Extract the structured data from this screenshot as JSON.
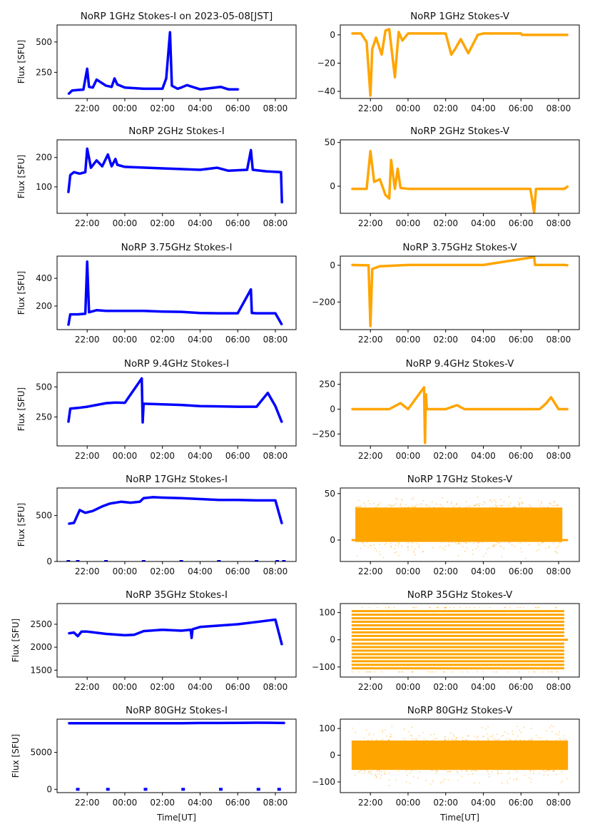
{
  "figure": {
    "xlabel": "Time[UT]",
    "ylabel": "Flux [SFU]",
    "colors": {
      "stokes_i": "#0000ff",
      "stokes_v": "#ffa500"
    }
  },
  "chart_data": [
    {
      "type": "scatter",
      "id": "1ghz-i",
      "column": "left",
      "row": 0,
      "title": "NoRP 1GHz Stokes-I on 2023-05-08[JST]",
      "xlabel": "",
      "ylabel": "Flux [SFU]",
      "xticks": [
        "22:00",
        "00:00",
        "02:00",
        "04:00",
        "06:00",
        "08:00"
      ],
      "xlim_hours": [
        20.4,
        33.1
      ],
      "ylim": [
        35,
        640
      ],
      "yticks": [
        250,
        500
      ],
      "series": [
        {
          "name": "Stokes-I",
          "color": "#0000ff",
          "x": [
            21.0,
            21.2,
            21.5,
            21.8,
            22.0,
            22.1,
            22.3,
            22.5,
            22.7,
            23.0,
            23.3,
            23.45,
            23.6,
            24.0,
            25.0,
            26.0,
            26.2,
            26.4,
            26.5,
            26.8,
            27.0,
            27.3,
            27.6,
            28.0,
            28.8,
            29.1,
            29.5,
            30.05
          ],
          "y": [
            70,
            100,
            105,
            108,
            280,
            130,
            125,
            190,
            170,
            140,
            130,
            200,
            150,
            125,
            115,
            115,
            200,
            580,
            140,
            115,
            125,
            145,
            130,
            110,
            125,
            130,
            110,
            110
          ]
        }
      ]
    },
    {
      "type": "scatter",
      "id": "1ghz-v",
      "column": "right",
      "row": 0,
      "title": "NoRP 1GHz Stokes-V",
      "xlabel": "",
      "xticks": [
        "22:00",
        "00:00",
        "02:00",
        "04:00",
        "06:00",
        "08:00"
      ],
      "xlim_hours": [
        20.4,
        33.1
      ],
      "ylim": [
        -45,
        7
      ],
      "yticks": [
        -40,
        -20,
        0
      ],
      "series": [
        {
          "name": "Stokes-V",
          "color": "#ffa500",
          "x": [
            21.0,
            21.5,
            21.8,
            22.0,
            22.1,
            22.3,
            22.6,
            22.8,
            23.0,
            23.3,
            23.5,
            23.7,
            24.0,
            24.5,
            26.0,
            26.3,
            26.5,
            26.8,
            27.2,
            27.4,
            27.7,
            28.0,
            29.0,
            30.0,
            30.05,
            31.0,
            32.5
          ],
          "y": [
            1,
            1,
            -5,
            -43,
            -10,
            -2,
            -14,
            3,
            4,
            -30,
            2,
            -4,
            1,
            1,
            1,
            -14,
            -10,
            -3,
            -13,
            -8,
            0,
            1,
            1,
            1,
            0,
            0,
            0
          ]
        }
      ]
    },
    {
      "type": "scatter",
      "id": "2ghz-i",
      "column": "left",
      "row": 1,
      "title": "NoRP 2GHz Stokes-I",
      "xlabel": "",
      "ylabel": "Flux [SFU]",
      "xticks": [
        "22:00",
        "00:00",
        "02:00",
        "04:00",
        "06:00",
        "08:00"
      ],
      "xlim_hours": [
        20.4,
        33.1
      ],
      "ylim": [
        10,
        260
      ],
      "yticks": [
        100,
        150,
        200
      ],
      "ytick_labels_shown": [
        100,
        200
      ],
      "series": [
        {
          "name": "Stokes-I",
          "color": "#0000ff",
          "x": [
            21.0,
            21.1,
            21.3,
            21.6,
            21.9,
            22.0,
            22.2,
            22.5,
            22.8,
            23.1,
            23.3,
            23.5,
            23.6,
            24.0,
            26.0,
            28.0,
            28.9,
            29.5,
            30.5,
            30.7,
            30.8,
            31.5,
            32.3,
            32.35
          ],
          "y": [
            80,
            140,
            150,
            145,
            150,
            230,
            165,
            190,
            170,
            210,
            170,
            195,
            175,
            168,
            163,
            158,
            165,
            155,
            158,
            225,
            158,
            153,
            150,
            45
          ]
        }
      ]
    },
    {
      "type": "scatter",
      "id": "2ghz-v",
      "column": "right",
      "row": 1,
      "title": "NoRP 2GHz Stokes-V",
      "xlabel": "",
      "xticks": [
        "22:00",
        "00:00",
        "02:00",
        "04:00",
        "06:00",
        "08:00"
      ],
      "xlim_hours": [
        20.4,
        33.1
      ],
      "ylim": [
        -31,
        53
      ],
      "yticks": [
        0,
        50
      ],
      "series": [
        {
          "name": "Stokes-V",
          "color": "#ffa500",
          "x": [
            21.0,
            21.8,
            22.0,
            22.2,
            22.5,
            22.8,
            23.0,
            23.1,
            23.3,
            23.45,
            23.6,
            24.0,
            26.0,
            28.0,
            30.5,
            30.7,
            30.8,
            31.5,
            32.3,
            32.5
          ],
          "y": [
            -3,
            -3,
            40,
            5,
            8,
            -10,
            -14,
            30,
            -3,
            20,
            -2,
            -3,
            -3,
            -3,
            -3,
            -30,
            -3,
            -3,
            -3,
            0
          ]
        }
      ]
    },
    {
      "type": "scatter",
      "id": "3.75ghz-i",
      "column": "left",
      "row": 2,
      "title": "NoRP 3.75GHz Stokes-I",
      "xlabel": "",
      "ylabel": "Flux [SFU]",
      "xticks": [
        "22:00",
        "00:00",
        "02:00",
        "04:00",
        "06:00",
        "08:00"
      ],
      "xlim_hours": [
        20.4,
        33.1
      ],
      "ylim": [
        30,
        560
      ],
      "yticks": [
        200,
        400
      ],
      "series": [
        {
          "name": "Stokes-I",
          "color": "#0000ff",
          "x": [
            21.0,
            21.1,
            21.5,
            21.9,
            22.0,
            22.1,
            22.5,
            23.0,
            24.0,
            25.0,
            26.0,
            27.0,
            28.0,
            29.0,
            30.0,
            30.7,
            30.75,
            31.0,
            32.0,
            32.35
          ],
          "y": [
            60,
            140,
            140,
            145,
            520,
            155,
            170,
            165,
            165,
            165,
            160,
            158,
            150,
            148,
            148,
            320,
            150,
            148,
            148,
            65
          ]
        }
      ]
    },
    {
      "type": "scatter",
      "id": "3.75ghz-v",
      "column": "right",
      "row": 2,
      "title": "NoRP 3.75GHz Stokes-V",
      "xlabel": "",
      "xticks": [
        "22:00",
        "00:00",
        "02:00",
        "04:00",
        "06:00",
        "08:00"
      ],
      "xlim_hours": [
        20.4,
        33.1
      ],
      "ylim": [
        -350,
        50
      ],
      "yticks": [
        -200,
        0
      ],
      "series": [
        {
          "name": "Stokes-V",
          "color": "#ffa500",
          "x": [
            21.0,
            21.9,
            22.0,
            22.1,
            22.5,
            24.0,
            28.0,
            30.7,
            30.75,
            31.0,
            32.3,
            32.5
          ],
          "y": [
            2,
            0,
            -330,
            -20,
            -5,
            2,
            2,
            45,
            2,
            2,
            2,
            0
          ]
        }
      ]
    },
    {
      "type": "scatter",
      "id": "9.4ghz-i",
      "column": "left",
      "row": 3,
      "title": "NoRP 9.4GHz Stokes-I",
      "xlabel": "",
      "ylabel": "Flux [SFU]",
      "xticks": [
        "22:00",
        "00:00",
        "02:00",
        "04:00",
        "06:00",
        "08:00"
      ],
      "xlim_hours": [
        20.4,
        33.1
      ],
      "ylim": [
        10,
        620
      ],
      "yticks": [
        250,
        500
      ],
      "series": [
        {
          "name": "Stokes-I",
          "color": "#0000ff",
          "x": [
            21.0,
            21.1,
            21.5,
            22.0,
            22.5,
            23.0,
            23.5,
            24.0,
            24.9,
            24.95,
            25.0,
            26.0,
            27.0,
            28.0,
            29.0,
            30.0,
            31.0,
            31.6,
            32.0,
            32.35
          ],
          "y": [
            205,
            320,
            325,
            335,
            350,
            365,
            370,
            368,
            570,
            205,
            360,
            355,
            350,
            340,
            338,
            335,
            335,
            450,
            340,
            205
          ]
        }
      ]
    },
    {
      "type": "scatter",
      "id": "9.4ghz-v",
      "column": "right",
      "row": 3,
      "title": "NoRP 9.4GHz Stokes-V",
      "xlabel": "",
      "xticks": [
        "22:00",
        "00:00",
        "02:00",
        "04:00",
        "06:00",
        "08:00"
      ],
      "xlim_hours": [
        20.4,
        33.1
      ],
      "ylim": [
        -370,
        370
      ],
      "yticks": [
        -250,
        0,
        250
      ],
      "series": [
        {
          "name": "Stokes-V",
          "color": "#ffa500",
          "x": [
            21.0,
            23.0,
            23.6,
            24.0,
            24.85,
            24.9,
            24.95,
            25.0,
            26.0,
            26.6,
            27.0,
            28.0,
            29.0,
            30.0,
            31.0,
            31.35,
            31.6,
            32.0,
            32.5
          ],
          "y": [
            0,
            0,
            60,
            0,
            220,
            -340,
            150,
            0,
            0,
            40,
            0,
            0,
            0,
            0,
            0,
            60,
            120,
            0,
            0
          ]
        }
      ]
    },
    {
      "type": "scatter",
      "id": "17ghz-i",
      "column": "left",
      "row": 4,
      "title": "NoRP 17GHz Stokes-I",
      "xlabel": "",
      "ylabel": "Flux [SFU]",
      "xticks": [
        "22:00",
        "00:00",
        "02:00",
        "04:00",
        "06:00",
        "08:00"
      ],
      "xlim_hours": [
        20.4,
        33.1
      ],
      "ylim": [
        0,
        800
      ],
      "yticks": [
        0,
        500
      ],
      "series": [
        {
          "name": "Stokes-I",
          "color": "#0000ff",
          "x": [
            21.0,
            21.3,
            21.6,
            21.9,
            22.3,
            22.8,
            23.2,
            23.8,
            24.3,
            24.8,
            25.0,
            25.5,
            26.0,
            27.0,
            28.0,
            29.0,
            30.0,
            31.0,
            32.0,
            32.35
          ],
          "y": [
            410,
            420,
            560,
            530,
            550,
            600,
            630,
            650,
            640,
            650,
            690,
            700,
            695,
            690,
            680,
            670,
            670,
            665,
            665,
            410
          ]
        }
      ],
      "zero_markers_hours": [
        21.0,
        21.5,
        23.0,
        25.0,
        27.0,
        29.0,
        31.0,
        32.1,
        32.45
      ]
    },
    {
      "type": "scatter",
      "id": "17ghz-v",
      "column": "right",
      "row": 4,
      "title": "NoRP 17GHz Stokes-V",
      "xlabel": "",
      "xticks": [
        "22:00",
        "00:00",
        "02:00",
        "04:00",
        "06:00",
        "08:00"
      ],
      "xlim_hours": [
        20.4,
        33.1
      ],
      "ylim": [
        -23,
        56
      ],
      "yticks": [
        0,
        50
      ],
      "band": {
        "x_start": 21.2,
        "x_end": 32.2,
        "core_low": -2,
        "core_high": 35,
        "outlier_low": -22,
        "outlier_high": 48
      },
      "baseline": {
        "x_start": 21.0,
        "x_end": 32.5,
        "y": 0
      }
    },
    {
      "type": "scatter",
      "id": "35ghz-i",
      "column": "left",
      "row": 5,
      "title": "NoRP 35GHz Stokes-I",
      "xlabel": "",
      "ylabel": "Flux [SFU]",
      "xticks": [
        "22:00",
        "00:00",
        "02:00",
        "04:00",
        "06:00",
        "08:00"
      ],
      "xlim_hours": [
        20.4,
        33.1
      ],
      "ylim": [
        1350,
        2950
      ],
      "yticks": [
        1500,
        2000,
        2500
      ],
      "series": [
        {
          "name": "Stokes-I",
          "color": "#0000ff",
          "x": [
            21.0,
            21.3,
            21.5,
            21.7,
            22.0,
            23.0,
            24.0,
            24.5,
            25.0,
            26.0,
            27.0,
            27.5,
            27.55,
            27.6,
            28.0,
            29.0,
            30.0,
            31.0,
            32.0,
            32.35
          ],
          "y": [
            2300,
            2320,
            2240,
            2340,
            2340,
            2290,
            2260,
            2270,
            2350,
            2380,
            2360,
            2380,
            2200,
            2390,
            2440,
            2470,
            2500,
            2550,
            2600,
            2050
          ]
        }
      ]
    },
    {
      "type": "scatter",
      "id": "35ghz-v",
      "column": "right",
      "row": 5,
      "title": "NoRP 35GHz Stokes-V",
      "xlabel": "",
      "xticks": [
        "22:00",
        "00:00",
        "02:00",
        "04:00",
        "06:00",
        "08:00"
      ],
      "xlim_hours": [
        20.4,
        33.1
      ],
      "ylim": [
        -137,
        133
      ],
      "yticks": [
        -100,
        0,
        100
      ],
      "quantized_levels": [
        -105,
        -92,
        -79,
        -66,
        -53,
        -40,
        -27,
        -14,
        0,
        14,
        27,
        40,
        53,
        66,
        79,
        92,
        105
      ],
      "levels_x_range": [
        21.0,
        32.3
      ],
      "outlier_levels": [
        -118,
        118
      ],
      "baseline": {
        "x_start": 32.3,
        "x_end": 32.5,
        "y": 0
      }
    },
    {
      "type": "scatter",
      "id": "80ghz-i",
      "column": "left",
      "row": 6,
      "title": "NoRP 80GHz Stokes-I",
      "xlabel": "Time[UT]",
      "ylabel": "Flux [SFU]",
      "xticks": [
        "22:00",
        "00:00",
        "02:00",
        "04:00",
        "06:00",
        "08:00"
      ],
      "xlim_hours": [
        20.4,
        33.1
      ],
      "ylim": [
        -450,
        9500
      ],
      "yticks": [
        0,
        5000
      ],
      "series": [
        {
          "name": "Stokes-I",
          "color": "#0000ff",
          "x": [
            21.0,
            23.0,
            25.0,
            27.0,
            28.0,
            29.0,
            30.0,
            31.0,
            32.0,
            32.5
          ],
          "y": [
            8950,
            8950,
            8950,
            8950,
            8980,
            8980,
            9000,
            9020,
            9000,
            8980
          ]
        }
      ],
      "zero_markers_hours": [
        21.5,
        23.1,
        25.1,
        27.1,
        29.1,
        31.1,
        32.2
      ]
    },
    {
      "type": "scatter",
      "id": "80ghz-v",
      "column": "right",
      "row": 6,
      "title": "NoRP 80GHz Stokes-V",
      "xlabel": "Time[UT]",
      "xticks": [
        "22:00",
        "00:00",
        "02:00",
        "04:00",
        "06:00",
        "08:00"
      ],
      "xlim_hours": [
        20.4,
        33.1
      ],
      "ylim": [
        -140,
        135
      ],
      "yticks": [
        -100,
        0,
        100
      ],
      "band": {
        "x_start": 21.0,
        "x_end": 32.5,
        "core_low": -55,
        "core_high": 55,
        "outlier_low": -120,
        "outlier_high": 120
      }
    }
  ]
}
